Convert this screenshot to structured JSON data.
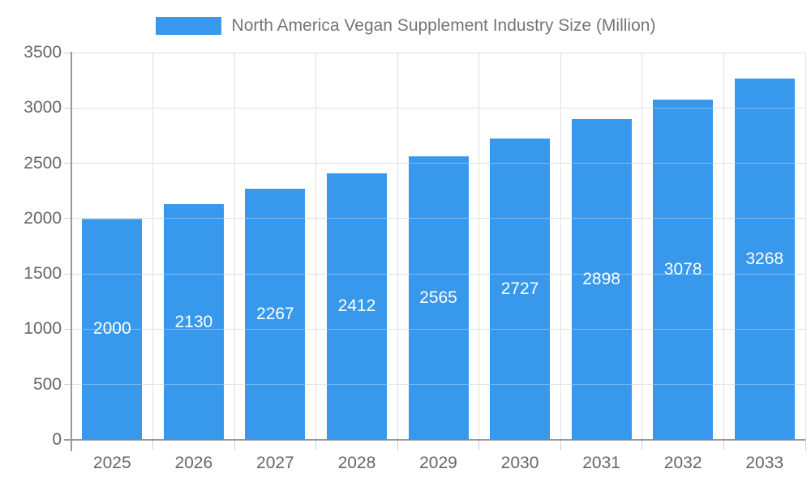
{
  "legend": {
    "label": "North America Vegan Supplement Industry Size (Million)"
  },
  "chart_data": {
    "type": "bar",
    "title": "North America Vegan Supplement Industry Size (Million)",
    "legend_position": "top",
    "categories": [
      "2025",
      "2026",
      "2027",
      "2028",
      "2029",
      "2030",
      "2031",
      "2032",
      "2033"
    ],
    "series": [
      {
        "name": "North America Vegan Supplement Industry Size (Million)",
        "values": [
          2000,
          2130,
          2267,
          2412,
          2565,
          2727,
          2898,
          3078,
          3268
        ]
      }
    ],
    "value_labels": [
      "2000",
      "2130",
      "2267",
      "2412",
      "2565",
      "2727",
      "2898",
      "3078",
      "3268"
    ],
    "value_label_position": "inside-center",
    "xlabel": "",
    "ylabel": "",
    "ylim": [
      0,
      3500
    ],
    "yticks": [
      0,
      500,
      1000,
      1500,
      2000,
      2500,
      3000,
      3500
    ],
    "grid": true,
    "colors": {
      "bar": "#3898ec",
      "grid_line": "#e0e0e0",
      "axis_line": "#989898",
      "tick_mark": "#cfcfcf",
      "axis_text": "#666666",
      "legend_text": "#757575",
      "value_text": "#ffffff",
      "background": "#ffffff"
    }
  }
}
